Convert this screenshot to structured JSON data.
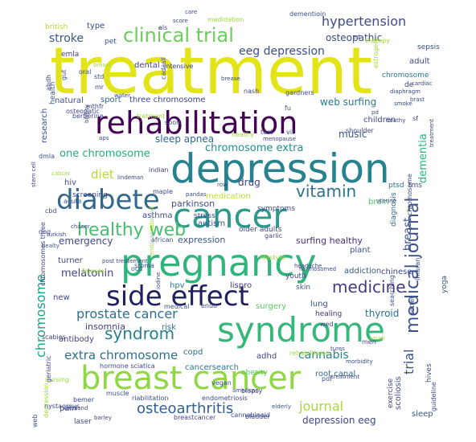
{
  "words": [
    {
      "text": "treatment",
      "color": "#e3e418"
    },
    {
      "text": "cancer",
      "color": "#2b9a8b"
    },
    {
      "text": "depression",
      "color": "#26828e"
    },
    {
      "text": "breast cancer",
      "color": "#8fd744"
    },
    {
      "text": "syndrome",
      "color": "#35b779"
    },
    {
      "text": "pregnancy",
      "color": "#2fb47c"
    },
    {
      "text": "rehabilitation",
      "color": "#440154"
    },
    {
      "text": "diabete",
      "color": "#31688e"
    },
    {
      "text": "side effect",
      "color": "#1f1f61"
    },
    {
      "text": "healthy web",
      "color": "#46c06f"
    },
    {
      "text": "clinical trial",
      "color": "#6ccd5a"
    },
    {
      "text": "medical journal",
      "color": "#3b528b"
    },
    {
      "text": "hypertension",
      "color": "#3e4a89"
    },
    {
      "text": "vitamin",
      "color": "#2c728e"
    },
    {
      "text": "osteoarthritis",
      "color": "#35608d"
    },
    {
      "text": "chromosome",
      "color": "#1fa088"
    },
    {
      "text": "journal",
      "color": "#a5db36"
    },
    {
      "text": "eeg depression",
      "color": "#3d4d8a"
    },
    {
      "text": "medicine",
      "color": "#443a83"
    },
    {
      "text": "prostate cancer",
      "color": "#2e6f8e"
    },
    {
      "text": "extra chromosome",
      "color": "#2d718e"
    },
    {
      "text": "syndrom",
      "color": "#26818e"
    },
    {
      "text": "chromosome extra",
      "color": "#21908d"
    },
    {
      "text": "one chromosome",
      "color": "#27ad81"
    },
    {
      "text": "stroke",
      "color": "#39558c"
    },
    {
      "text": "emergency",
      "color": "#3f4788"
    },
    {
      "text": "melatonin",
      "color": "#404688"
    },
    {
      "text": "cannabis",
      "color": "#26828e"
    },
    {
      "text": "trial",
      "color": "#3b518b"
    },
    {
      "text": "breast",
      "color": "#3a548c"
    },
    {
      "text": "dementia",
      "color": "#2db27d"
    },
    {
      "text": "diet",
      "color": "#b2dd2d"
    },
    {
      "text": "sleep apnea",
      "color": "#31688e"
    },
    {
      "text": "music",
      "color": "#3a538b"
    },
    {
      "text": "web surfing",
      "color": "#2a788e"
    },
    {
      "text": "osteopathic",
      "color": "#3f4889"
    },
    {
      "text": "thyroid",
      "color": "#2c728e"
    },
    {
      "text": "surfing healthy",
      "color": "#472d7b"
    },
    {
      "text": "depression eeg",
      "color": "#3e4989"
    },
    {
      "text": "hpv",
      "color": "#277f8e"
    },
    {
      "text": "parkinson",
      "color": "#3e4c8a"
    },
    {
      "text": "drug",
      "color": "#424186"
    },
    {
      "text": "expression",
      "color": "#3b528b"
    },
    {
      "text": "sport",
      "color": "#33638d"
    },
    {
      "text": "three chromosome",
      "color": "#3f4788"
    },
    {
      "text": "insomnia",
      "color": "#404588"
    },
    {
      "text": "risk",
      "color": "#2c738e"
    },
    {
      "text": "copd",
      "color": "#2e6e8e"
    },
    {
      "text": "adhd",
      "color": "#3e4989"
    },
    {
      "text": "root canal",
      "color": "#2e6f8e"
    },
    {
      "text": "cancersearch",
      "color": "#2a768e"
    },
    {
      "text": "addiction",
      "color": "#38588c"
    },
    {
      "text": "lung",
      "color": "#3c4f8a"
    },
    {
      "text": "asthma",
      "color": "#3f4788"
    },
    {
      "text": "antibody",
      "color": "#414487"
    },
    {
      "text": "autism",
      "color": "#3b528b"
    },
    {
      "text": "medication",
      "color": "#c0df25"
    },
    {
      "text": "research",
      "color": "#3b528b"
    },
    {
      "text": "natural",
      "color": "#3e4c8a"
    },
    {
      "text": "children",
      "color": "#3f4889"
    },
    {
      "text": "dental",
      "color": "#404588"
    },
    {
      "text": "emla",
      "color": "#424086"
    },
    {
      "text": "pet",
      "color": "#3b528b"
    },
    {
      "text": "type",
      "color": "#3e4a89"
    },
    {
      "text": "british",
      "color": "#b5de2b"
    },
    {
      "text": "adult",
      "color": "#3f4889"
    },
    {
      "text": "chromosome",
      "color": "#2a778e"
    },
    {
      "text": "de",
      "color": "#414287"
    },
    {
      "text": "sepsis",
      "color": "#3e4a89"
    },
    {
      "text": "health",
      "color": "#3a548c"
    },
    {
      "text": "diagnosis",
      "color": "#2e6d8e"
    },
    {
      "text": "ptsd",
      "color": "#2c718e"
    },
    {
      "text": "tms",
      "color": "#3b528b"
    },
    {
      "text": "brain",
      "color": "#50c46a"
    },
    {
      "text": "plant",
      "color": "#3a538b"
    },
    {
      "text": "turner",
      "color": "#3f4889"
    },
    {
      "text": "chinese",
      "color": "#3e4989"
    },
    {
      "text": "youth",
      "color": "#404588"
    },
    {
      "text": "skin",
      "color": "#39568c"
    },
    {
      "text": "lispro",
      "color": "#443983"
    },
    {
      "text": "surgery",
      "color": "#5ec962"
    },
    {
      "text": "healing",
      "color": "#46337e"
    },
    {
      "text": "new",
      "color": "#404588"
    },
    {
      "text": "pain",
      "color": "#3f4788"
    },
    {
      "text": "obesity",
      "color": "#5ec962"
    },
    {
      "text": "scoliosis",
      "color": "#3f4889"
    },
    {
      "text": "hives",
      "color": "#3b528b"
    },
    {
      "text": "sleep",
      "color": "#3a548c"
    },
    {
      "text": "laser",
      "color": "#3e4a89"
    },
    {
      "text": "bemer",
      "color": "#3f4788"
    },
    {
      "text": "vegan",
      "color": "#3e4c8a"
    },
    {
      "text": "endo",
      "color": "#3f4889"
    },
    {
      "text": "biopsy",
      "color": "#404588"
    },
    {
      "text": "muscle",
      "color": "#3e4c8a"
    },
    {
      "text": "bladder",
      "color": "#3f4889"
    },
    {
      "text": "pdf",
      "color": "#3b528b"
    },
    {
      "text": "yoga",
      "color": "#3a548c"
    },
    {
      "text": "symptoms",
      "color": "#3e4c8a"
    },
    {
      "text": "stress",
      "color": "#3f4889"
    },
    {
      "text": "older adults",
      "color": "#3e4a89"
    },
    {
      "text": "stoma",
      "color": "#3b528b"
    },
    {
      "text": "ocd",
      "color": "#39568c"
    },
    {
      "text": "medical",
      "color": "#3a548c"
    },
    {
      "text": "fu",
      "color": "#3b528b"
    },
    {
      "text": "gardners",
      "color": "#3e4a89"
    },
    {
      "text": "nash",
      "color": "#404588"
    },
    {
      "text": "test",
      "color": "#3e4c8a"
    },
    {
      "text": "shoulder",
      "color": "#3f4889"
    },
    {
      "text": "vit",
      "color": "#3b528b"
    },
    {
      "text": "intensive",
      "color": "#404588"
    },
    {
      "text": "cadasil",
      "color": "#3e4c8a"
    },
    {
      "text": "als",
      "color": "#3f4889"
    },
    {
      "text": "medidation",
      "color": "#a0da39"
    },
    {
      "text": "dementioin",
      "color": "#3f4889"
    },
    {
      "text": "estrogen",
      "color": "#a8db34"
    },
    {
      "text": "therapy",
      "color": "#a0da39"
    },
    {
      "text": "hiv",
      "color": "#3e4c8a"
    },
    {
      "text": "screening",
      "color": "#3e4a89"
    },
    {
      "text": "cbd",
      "color": "#3f4889"
    },
    {
      "text": "acute",
      "color": "#3a548c"
    },
    {
      "text": "dmla",
      "color": "#3e4c8a"
    },
    {
      "text": "indian",
      "color": "#404588"
    },
    {
      "text": "maple",
      "color": "#3e4a89"
    },
    {
      "text": "african",
      "color": "#3b528b"
    },
    {
      "text": "female",
      "color": "#a8db34"
    },
    {
      "text": "lifestyle",
      "color": "#a0da39"
    },
    {
      "text": "garlic",
      "color": "#3f4889"
    },
    {
      "text": "dog",
      "color": "#3e4c8a"
    },
    {
      "text": "scabies",
      "color": "#3f4889"
    },
    {
      "text": "nursing",
      "color": "#a0da39"
    },
    {
      "text": "chromosomes three",
      "color": "#3e4a89"
    },
    {
      "text": "hormone sciatica",
      "color": "#3f4889"
    },
    {
      "text": "rehabilitaion",
      "color": "#a0da39"
    },
    {
      "text": "riabilitation",
      "color": "#3e4c8a"
    },
    {
      "text": "endometriosis",
      "color": "#3f4889"
    },
    {
      "text": "breastcancer",
      "color": "#3e4a89"
    },
    {
      "text": "cannabinoid",
      "color": "#3b528b"
    },
    {
      "text": "guideline",
      "color": "#3e4c8a"
    },
    {
      "text": "exercise",
      "color": "#3f4889"
    },
    {
      "text": "potter",
      "color": "#3e4a89"
    },
    {
      "text": "imuran",
      "color": "#3f4889"
    },
    {
      "text": "searching",
      "color": "#3e4c8a"
    },
    {
      "text": "web",
      "color": "#3a548c"
    },
    {
      "text": "depression",
      "color": "#a0da39"
    },
    {
      "text": "nystagmus",
      "color": "#3e4a89"
    },
    {
      "text": "geriatric",
      "color": "#3f4889"
    },
    {
      "text": "ahdh",
      "color": "#404588"
    },
    {
      "text": "gut",
      "color": "#3e4c8a"
    },
    {
      "text": "oral",
      "color": "#3f4889"
    },
    {
      "text": "std",
      "color": "#3e4a89"
    },
    {
      "text": "mr",
      "color": "#3f4889"
    },
    {
      "text": "osteopatic",
      "color": "#3e4c8a"
    },
    {
      "text": "berberine",
      "color": "#3f4889"
    },
    {
      "text": "mthfr",
      "color": "#3e4a89"
    },
    {
      "text": "tratment",
      "color": "#a0da39"
    },
    {
      "text": "sport",
      "color": "#3e4c8a"
    },
    {
      "text": "heathy",
      "color": "#a0da39"
    },
    {
      "text": "menopause",
      "color": "#3f4889"
    },
    {
      "text": "aps",
      "color": "#3e4a89"
    },
    {
      "text": "smoke",
      "color": "#3f4889"
    },
    {
      "text": "treatment",
      "color": "#3e4c8a"
    },
    {
      "text": "stem cell",
      "color": "#3f4889"
    },
    {
      "text": "cabcer",
      "color": "#a0da39"
    },
    {
      "text": "lindeman",
      "color": "#3e4a89"
    },
    {
      "text": "pandas",
      "color": "#3f4889"
    },
    {
      "text": "row",
      "color": "#3e4c8a"
    },
    {
      "text": "uterine",
      "color": "#3f4889"
    },
    {
      "text": "chromosome",
      "color": "#3e4a89"
    },
    {
      "text": "turkish",
      "color": "#3f4889"
    },
    {
      "text": "healty",
      "color": "#3e4c8a"
    },
    {
      "text": "chacer",
      "color": "#3f4889"
    },
    {
      "text": "post treatement",
      "color": "#3e4a89"
    },
    {
      "text": "endocannabinoid",
      "color": "#a0da39"
    },
    {
      "text": "headache",
      "color": "#3f4889"
    },
    {
      "text": "hormosomed",
      "color": "#3e4c8a"
    },
    {
      "text": "iodine",
      "color": "#3f4889"
    },
    {
      "text": "wed",
      "color": "#3e4a89"
    },
    {
      "text": "saudi",
      "color": "#a0da39"
    },
    {
      "text": "men",
      "color": "#3f4889"
    },
    {
      "text": "tures",
      "color": "#3e4c8a"
    },
    {
      "text": "morbidity",
      "color": "#3f4889"
    },
    {
      "text": "treatment",
      "color": "#3e4a89"
    },
    {
      "text": "american",
      "color": "#3f4889"
    },
    {
      "text": "elderly",
      "color": "#3e4c8a"
    },
    {
      "text": "barley",
      "color": "#3f4889"
    },
    {
      "text": "zealand",
      "color": "#3e4a89"
    },
    {
      "text": "score",
      "color": "#3f4889"
    },
    {
      "text": "care",
      "color": "#3e4c8a"
    },
    {
      "text": "ed",
      "color": "#3f4889"
    },
    {
      "text": "brease",
      "color": "#3e4a89"
    },
    {
      "text": "diaphragm",
      "color": "#3f4889"
    },
    {
      "text": "brast",
      "color": "#3e4c8a"
    },
    {
      "text": "cardiac",
      "color": "#3f4889"
    },
    {
      "text": "pd",
      "color": "#3e4a89"
    },
    {
      "text": "sf",
      "color": "#3f4889"
    },
    {
      "text": "water",
      "color": "#3e4c8a"
    },
    {
      "text": "heathy",
      "color": "#3f4889"
    },
    {
      "text": "breast",
      "color": "#a0da39"
    },
    {
      "text": "biopsy",
      "color": "#3e4a89"
    }
  ]
}
